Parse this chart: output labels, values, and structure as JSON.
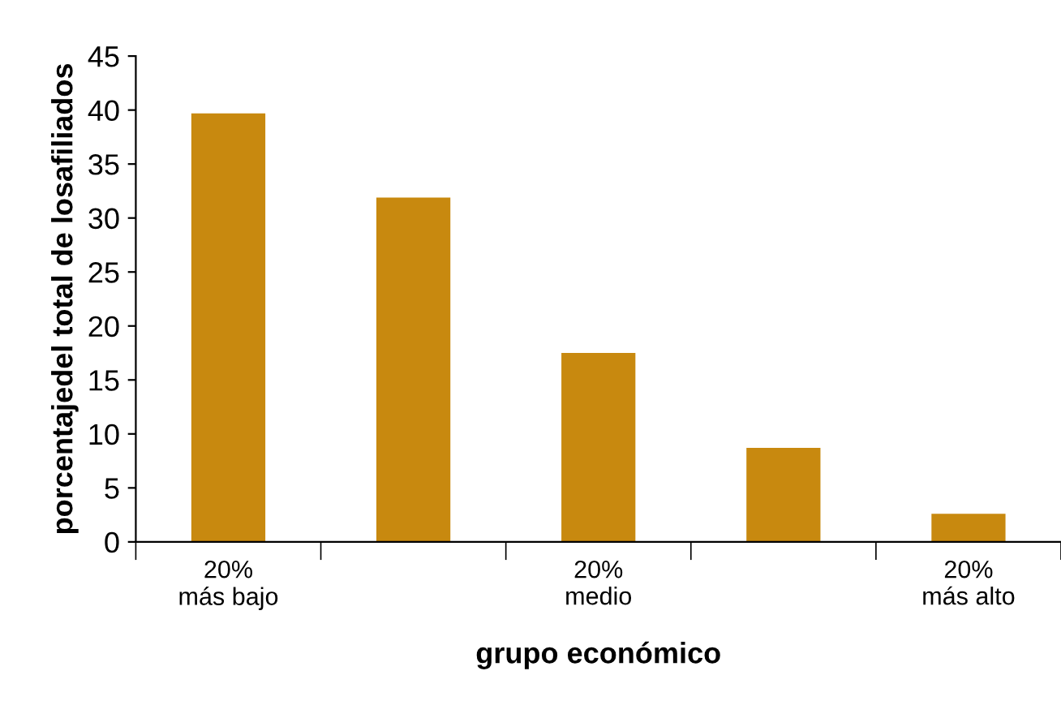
{
  "chart_data": {
    "type": "bar",
    "xlabel": "grupo económico",
    "ylabel": "porcentajedel total de losafiliados",
    "categories": [
      "20%\nmás bajo",
      null,
      "20%\nmedio",
      null,
      "20%\nmás alto"
    ],
    "values": [
      39.7,
      31.9,
      17.5,
      8.7,
      2.6
    ],
    "color": "#c8890f",
    "ylim": [
      0,
      45
    ],
    "yticks": [
      0,
      5,
      10,
      15,
      20,
      25,
      30,
      35,
      40,
      45
    ],
    "grid": false,
    "legend": false
  }
}
